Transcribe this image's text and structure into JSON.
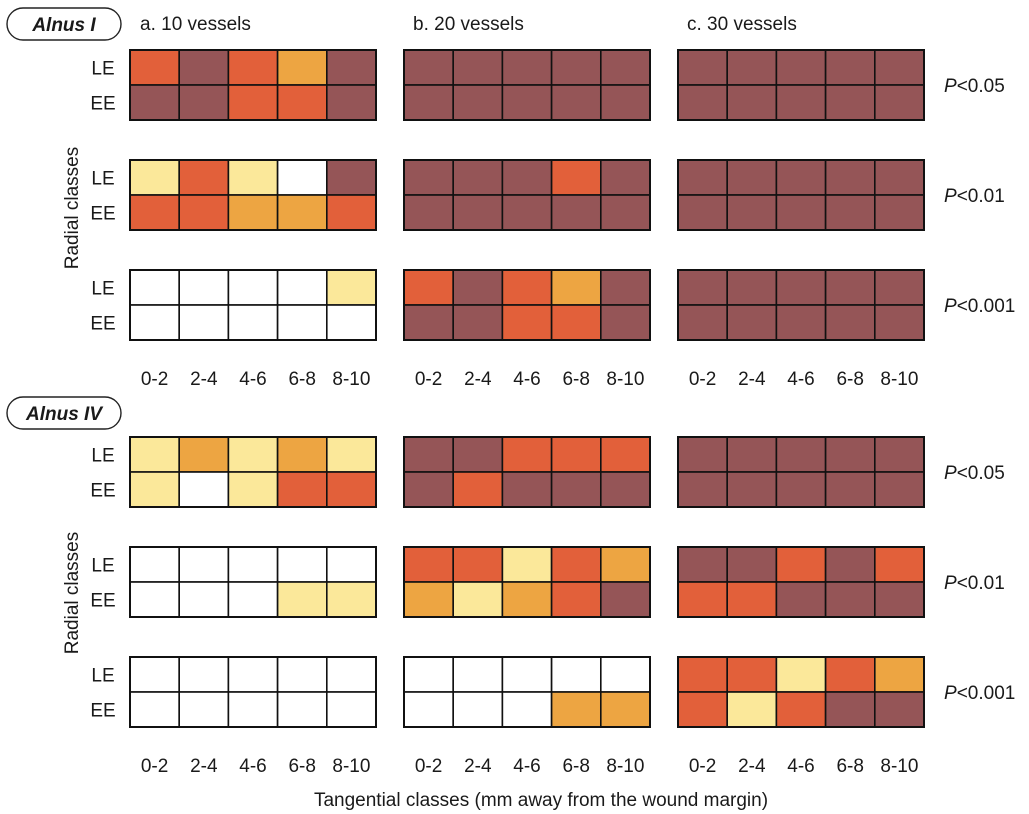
{
  "chart_data": {
    "type": "heatmap",
    "color_legend": {
      "0": "#ffffff",
      "1": "#fbe89a",
      "2": "#eda542",
      "3": "#e2603a",
      "4": "#955557"
    },
    "columns": [
      {
        "label": "a. 10 vessels"
      },
      {
        "label": "b. 20 vessels"
      },
      {
        "label": "c. 30 vessels"
      }
    ],
    "x_tick_labels": [
      "0-2",
      "2-4",
      "4-6",
      "6-8",
      "8-10"
    ],
    "row_labels": [
      "LE",
      "EE"
    ],
    "significance_levels": [
      "P<0.05",
      "P<0.01",
      "P<0.001"
    ],
    "xlabel": "Tangential classes (mm away from the wound margin)",
    "ylabel": "Radial classes",
    "species": [
      {
        "name": "Alnus I",
        "grids": [
          [
            [
              [
                3,
                4,
                3,
                2,
                4
              ],
              [
                4,
                4,
                3,
                3,
                4
              ]
            ],
            [
              [
                1,
                3,
                1,
                0,
                4
              ],
              [
                3,
                3,
                2,
                2,
                3
              ]
            ],
            [
              [
                0,
                0,
                0,
                0,
                1
              ],
              [
                0,
                0,
                0,
                0,
                0
              ]
            ]
          ],
          [
            [
              [
                4,
                4,
                4,
                4,
                4
              ],
              [
                4,
                4,
                4,
                4,
                4
              ]
            ],
            [
              [
                4,
                4,
                4,
                3,
                4
              ],
              [
                4,
                4,
                4,
                4,
                4
              ]
            ],
            [
              [
                3,
                4,
                3,
                2,
                4
              ],
              [
                4,
                4,
                3,
                3,
                4
              ]
            ]
          ],
          [
            [
              [
                4,
                4,
                4,
                4,
                4
              ],
              [
                4,
                4,
                4,
                4,
                4
              ]
            ],
            [
              [
                4,
                4,
                4,
                4,
                4
              ],
              [
                4,
                4,
                4,
                4,
                4
              ]
            ],
            [
              [
                4,
                4,
                4,
                4,
                4
              ],
              [
                4,
                4,
                4,
                4,
                4
              ]
            ]
          ]
        ]
      },
      {
        "name": "Alnus IV",
        "grids": [
          [
            [
              [
                1,
                2,
                1,
                2,
                1
              ],
              [
                1,
                0,
                1,
                3,
                3
              ]
            ],
            [
              [
                0,
                0,
                0,
                0,
                0
              ],
              [
                0,
                0,
                0,
                1,
                1
              ]
            ],
            [
              [
                0,
                0,
                0,
                0,
                0
              ],
              [
                0,
                0,
                0,
                0,
                0
              ]
            ]
          ],
          [
            [
              [
                4,
                4,
                3,
                3,
                3
              ],
              [
                4,
                3,
                4,
                4,
                4
              ]
            ],
            [
              [
                3,
                3,
                1,
                3,
                2
              ],
              [
                2,
                1,
                2,
                3,
                4
              ]
            ],
            [
              [
                0,
                0,
                0,
                0,
                0
              ],
              [
                0,
                0,
                0,
                2,
                2
              ]
            ]
          ],
          [
            [
              [
                4,
                4,
                4,
                4,
                4
              ],
              [
                4,
                4,
                4,
                4,
                4
              ]
            ],
            [
              [
                4,
                4,
                3,
                4,
                3
              ],
              [
                3,
                3,
                4,
                4,
                4
              ]
            ],
            [
              [
                3,
                3,
                1,
                3,
                2
              ],
              [
                3,
                1,
                3,
                4,
                4
              ]
            ]
          ]
        ]
      }
    ]
  }
}
